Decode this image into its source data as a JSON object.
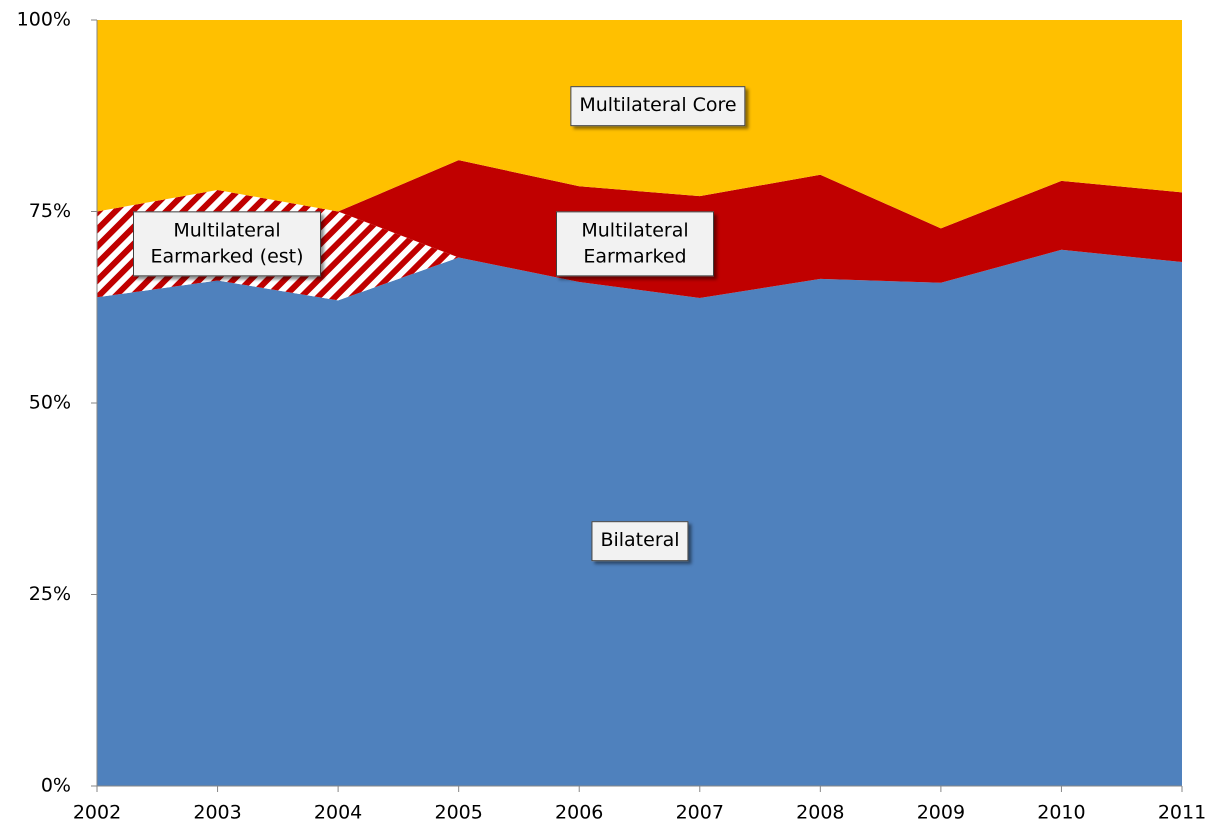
{
  "chart_data": {
    "type": "stacked_area",
    "categories": [
      "2002",
      "2003",
      "2004",
      "2005",
      "2006",
      "2007",
      "2008",
      "2009",
      "2010",
      "2011"
    ],
    "series": [
      {
        "name": "Bilateral",
        "color": "#4f81bd",
        "values": [
          63.8,
          66,
          63.4,
          69,
          65.8,
          63.7,
          66.2,
          65.7,
          70,
          68.4
        ]
      },
      {
        "name": "Multilateral Earmarked (est)",
        "color": "#c00000",
        "pattern": "hatch",
        "values": [
          11.2,
          11.8,
          11.6,
          0,
          null,
          null,
          null,
          null,
          null,
          null
        ]
      },
      {
        "name": "Multilateral Earmarked",
        "color": "#c00000",
        "values": [
          null,
          null,
          0,
          12.7,
          12.5,
          13.3,
          13.6,
          7.1,
          9,
          9.1
        ]
      },
      {
        "name": "Multilateral Core",
        "color": "#ffc000",
        "values": [
          25,
          22.2,
          25,
          18.3,
          21.7,
          23,
          20.2,
          27.2,
          21,
          22.5
        ]
      }
    ],
    "ylim": [
      0,
      100
    ],
    "yticks": [
      {
        "value": 0,
        "label": "0%"
      },
      {
        "value": 25,
        "label": "25%"
      },
      {
        "value": 50,
        "label": "50%"
      },
      {
        "value": 75,
        "label": "75%"
      },
      {
        "value": 100,
        "label": "100%"
      }
    ]
  }
}
